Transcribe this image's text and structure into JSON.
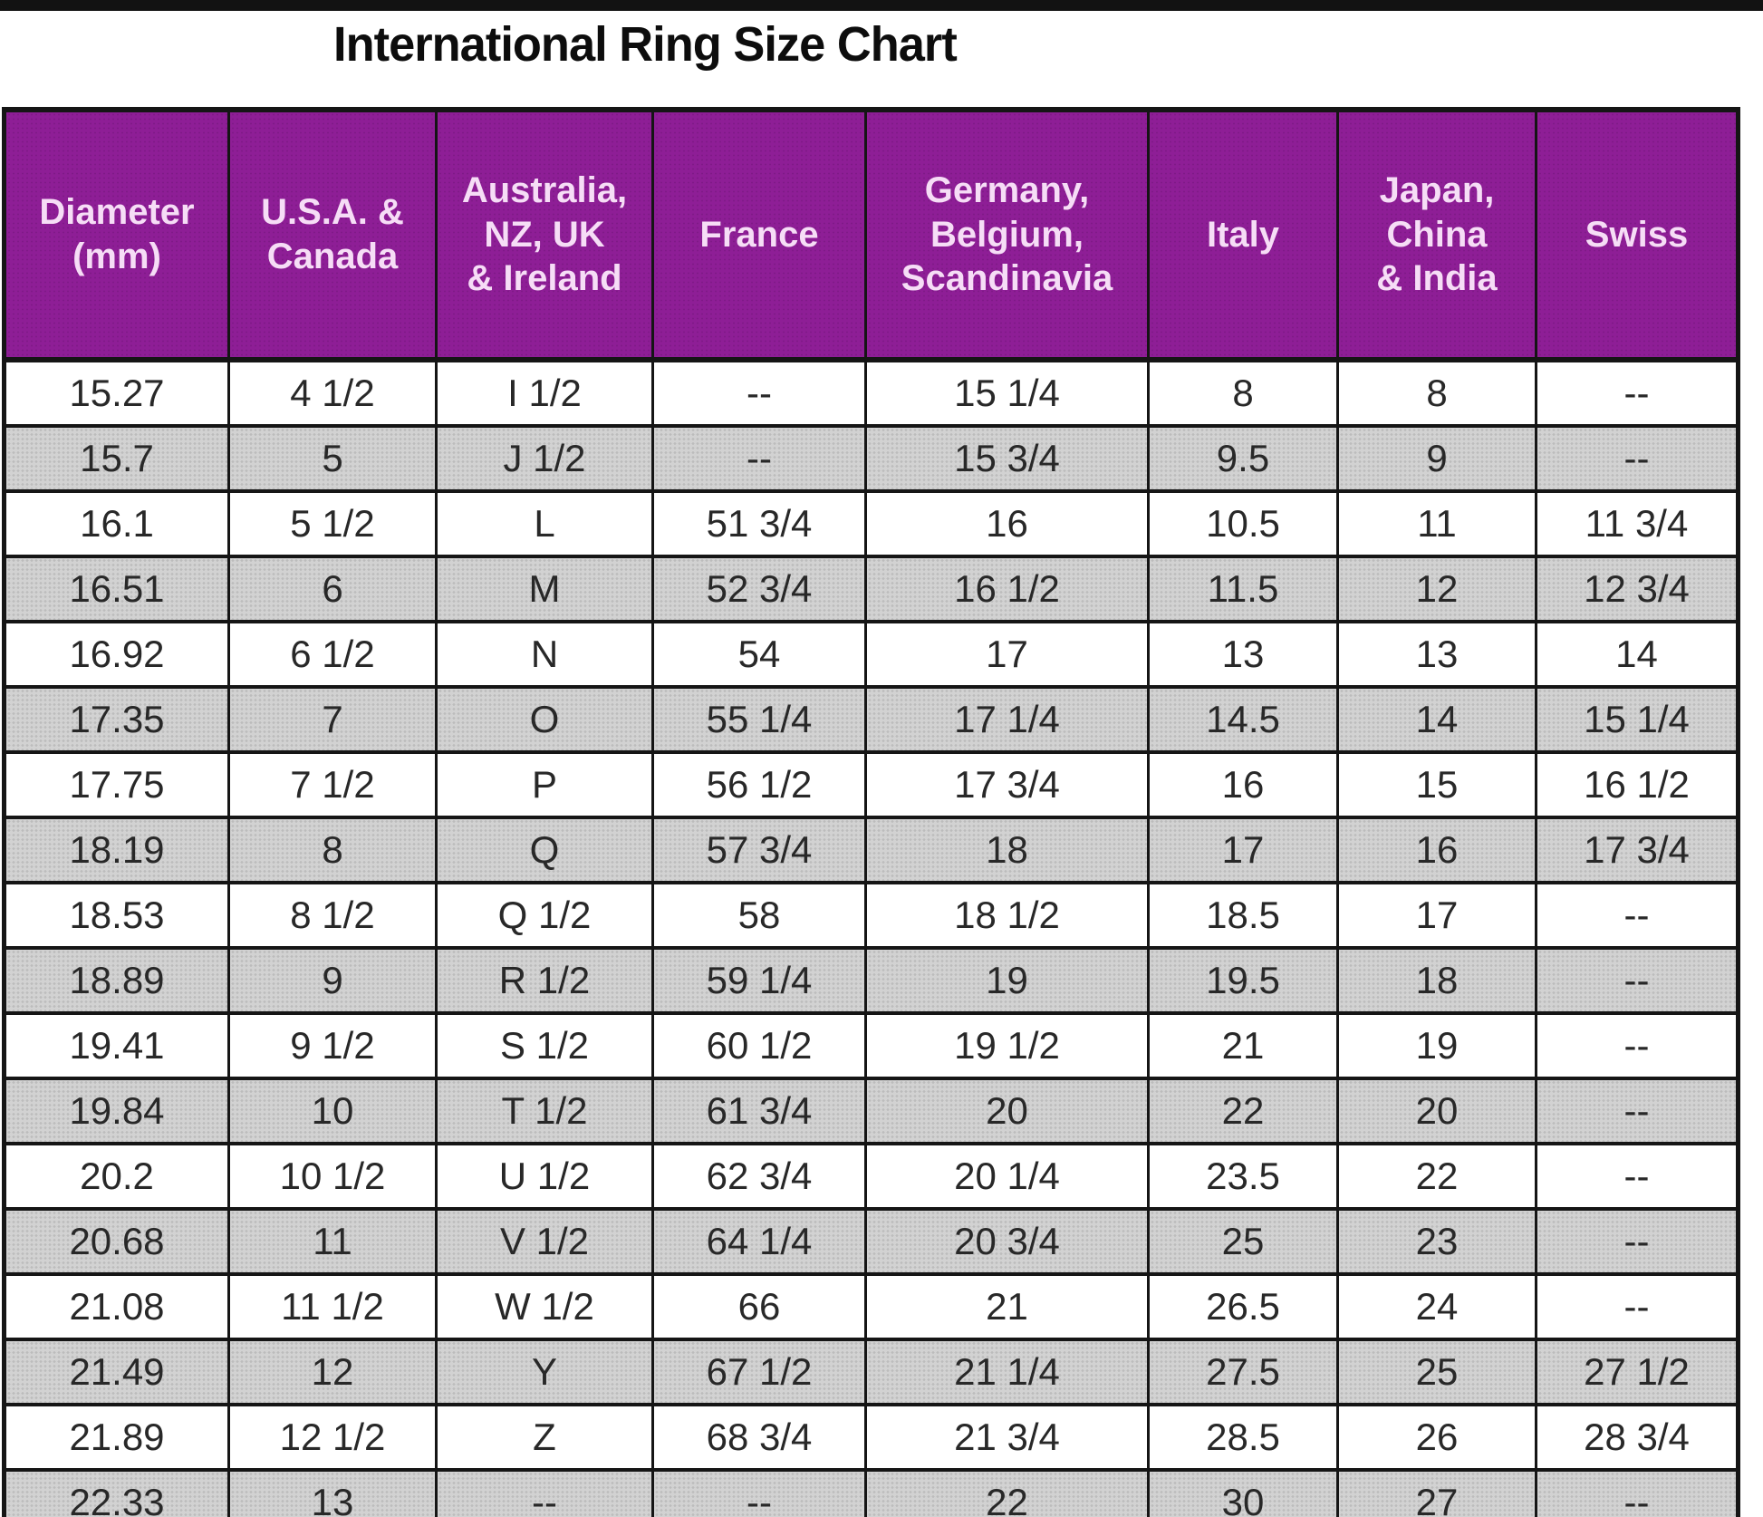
{
  "title": "International Ring Size Chart",
  "colors": {
    "header_bg": "#8e1e96",
    "header_text": "#f6ddf6",
    "stripe_gray": "#d2d2d2",
    "border_black": "#151515",
    "title_text": "#0d0d0d"
  },
  "chart_data": {
    "type": "table",
    "title": "International Ring Size Chart",
    "columns": [
      "Diameter\n(mm)",
      "U.S.A. &\nCanada",
      "Australia,\nNZ, UK\n& Ireland",
      "France",
      "Germany,\nBelgium,\nScandinavia",
      "Italy",
      "Japan,\nChina\n& India",
      "Swiss"
    ],
    "missing_value_marker": "--",
    "layout": {
      "striped": true,
      "first_row_background": "white",
      "alternate_row_background": "dotted-gray",
      "header_position": "top",
      "grid": true
    },
    "rows": [
      [
        "15.27",
        "4 1/2",
        "I 1/2",
        "--",
        "15 1/4",
        "8",
        "8",
        "--"
      ],
      [
        "15.7",
        "5",
        "J 1/2",
        "--",
        "15 3/4",
        "9.5",
        "9",
        "--"
      ],
      [
        "16.1",
        "5 1/2",
        "L",
        "51 3/4",
        "16",
        "10.5",
        "11",
        "11 3/4"
      ],
      [
        "16.51",
        "6",
        "M",
        "52 3/4",
        "16 1/2",
        "11.5",
        "12",
        "12 3/4"
      ],
      [
        "16.92",
        "6 1/2",
        "N",
        "54",
        "17",
        "13",
        "13",
        "14"
      ],
      [
        "17.35",
        "7",
        "O",
        "55 1/4",
        "17 1/4",
        "14.5",
        "14",
        "15 1/4"
      ],
      [
        "17.75",
        "7 1/2",
        "P",
        "56 1/2",
        "17 3/4",
        "16",
        "15",
        "16 1/2"
      ],
      [
        "18.19",
        "8",
        "Q",
        "57 3/4",
        "18",
        "17",
        "16",
        "17 3/4"
      ],
      [
        "18.53",
        "8 1/2",
        "Q 1/2",
        "58",
        "18 1/2",
        "18.5",
        "17",
        "--"
      ],
      [
        "18.89",
        "9",
        "R 1/2",
        "59 1/4",
        "19",
        "19.5",
        "18",
        "--"
      ],
      [
        "19.41",
        "9 1/2",
        "S 1/2",
        "60 1/2",
        "19 1/2",
        "21",
        "19",
        "--"
      ],
      [
        "19.84",
        "10",
        "T 1/2",
        "61 3/4",
        "20",
        "22",
        "20",
        "--"
      ],
      [
        "20.2",
        "10 1/2",
        "U 1/2",
        "62 3/4",
        "20 1/4",
        "23.5",
        "22",
        "--"
      ],
      [
        "20.68",
        "11",
        "V 1/2",
        "64 1/4",
        "20 3/4",
        "25",
        "23",
        "--"
      ],
      [
        "21.08",
        "11 1/2",
        "W 1/2",
        "66",
        "21",
        "26.5",
        "24",
        "--"
      ],
      [
        "21.49",
        "12",
        "Y",
        "67 1/2",
        "21 1/4",
        "27.5",
        "25",
        "27 1/2"
      ],
      [
        "21.89",
        "12 1/2",
        "Z",
        "68 3/4",
        "21 3/4",
        "28.5",
        "26",
        "28 3/4"
      ],
      [
        "22.33",
        "13",
        "--",
        "--",
        "22",
        "30",
        "27",
        "--"
      ]
    ]
  }
}
